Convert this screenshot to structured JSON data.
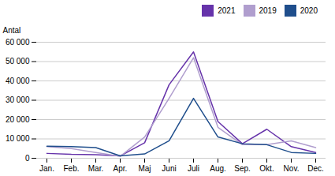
{
  "chart_data": {
    "type": "line",
    "ylabel": "Antal",
    "categories": [
      "Jan.",
      "Feb.",
      "Mar.",
      "Apr.",
      "Maj",
      "Juni",
      "Juli",
      "Aug.",
      "Sep.",
      "Okt.",
      "Nov.",
      "Dec."
    ],
    "series": [
      {
        "name": "2021",
        "color": "#6633aa",
        "values": [
          2500,
          2000,
          1800,
          1200,
          8000,
          38000,
          55000,
          19000,
          7500,
          15000,
          6000,
          3000
        ]
      },
      {
        "name": "2019",
        "color": "#b09ece",
        "values": [
          6000,
          5000,
          3000,
          1000,
          11000,
          31000,
          52000,
          16000,
          7000,
          7000,
          9000,
          5500
        ]
      },
      {
        "name": "2020",
        "color": "#1f4e8c",
        "values": [
          6200,
          6000,
          5500,
          1200,
          2200,
          9000,
          31000,
          11000,
          7500,
          7000,
          3000,
          2500
        ]
      }
    ],
    "ylim": [
      0,
      60000
    ],
    "yticks": [
      0,
      {
        "value": 10000,
        "label": "10 000"
      },
      {
        "value": 20000,
        "label": "20 000"
      },
      {
        "value": 30000,
        "label": "30 000"
      },
      {
        "value": 40000,
        "label": "40 000"
      },
      {
        "value": 50000,
        "label": "50 000"
      },
      {
        "value": 60000,
        "label": "60 000"
      }
    ],
    "grid": true,
    "legend": "right"
  }
}
